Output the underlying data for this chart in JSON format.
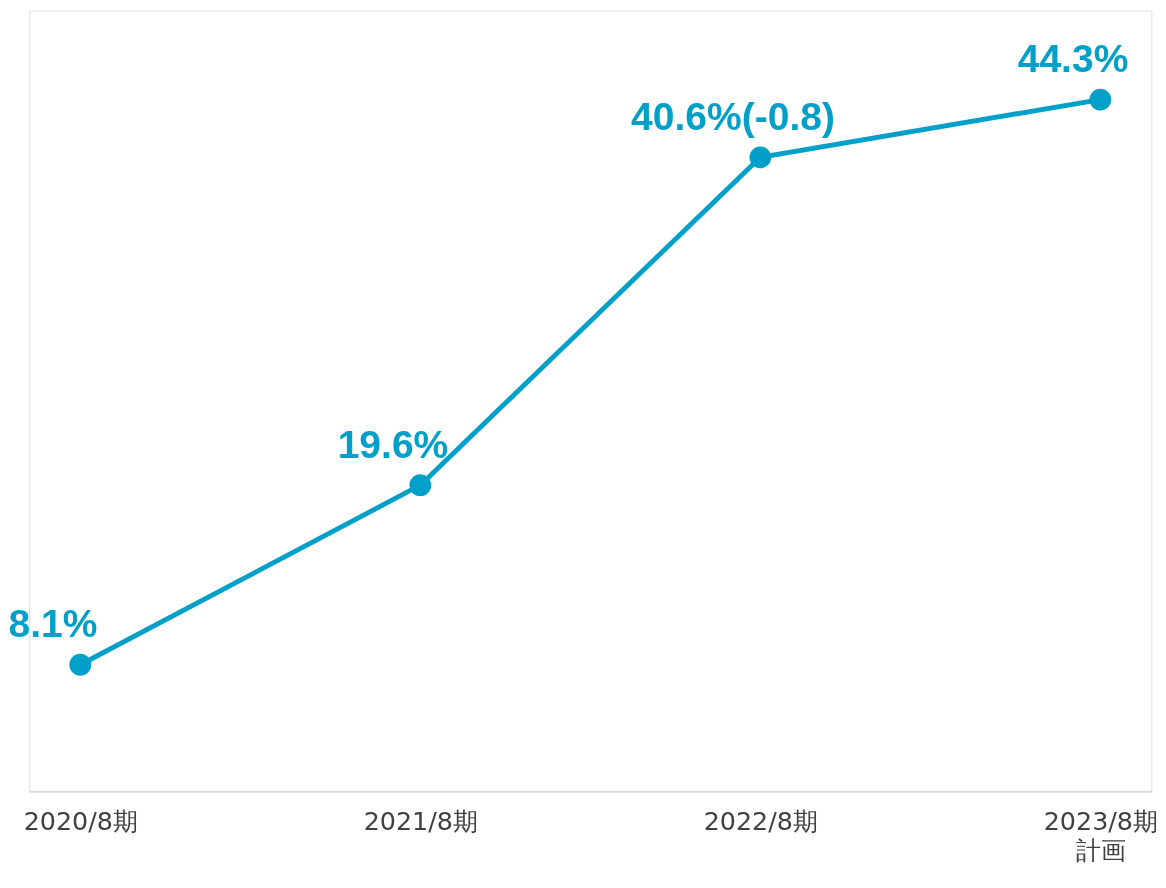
{
  "chart_data": {
    "type": "line",
    "categories": [
      "2020/8期",
      "2021/8期",
      "2022/8期",
      "2023/8期計画"
    ],
    "series": [
      {
        "color": "#00a0c8",
        "values": [
          8.1,
          19.6,
          40.6,
          44.3
        ],
        "value_labels": [
          "8.1%",
          "19.6%",
          "40.6%(-0.8)",
          "44.3%"
        ]
      }
    ],
    "ylim": [
      0,
      50
    ],
    "tick_labels": "x",
    "marker": "circle",
    "line_style": "solid",
    "grid": false
  }
}
